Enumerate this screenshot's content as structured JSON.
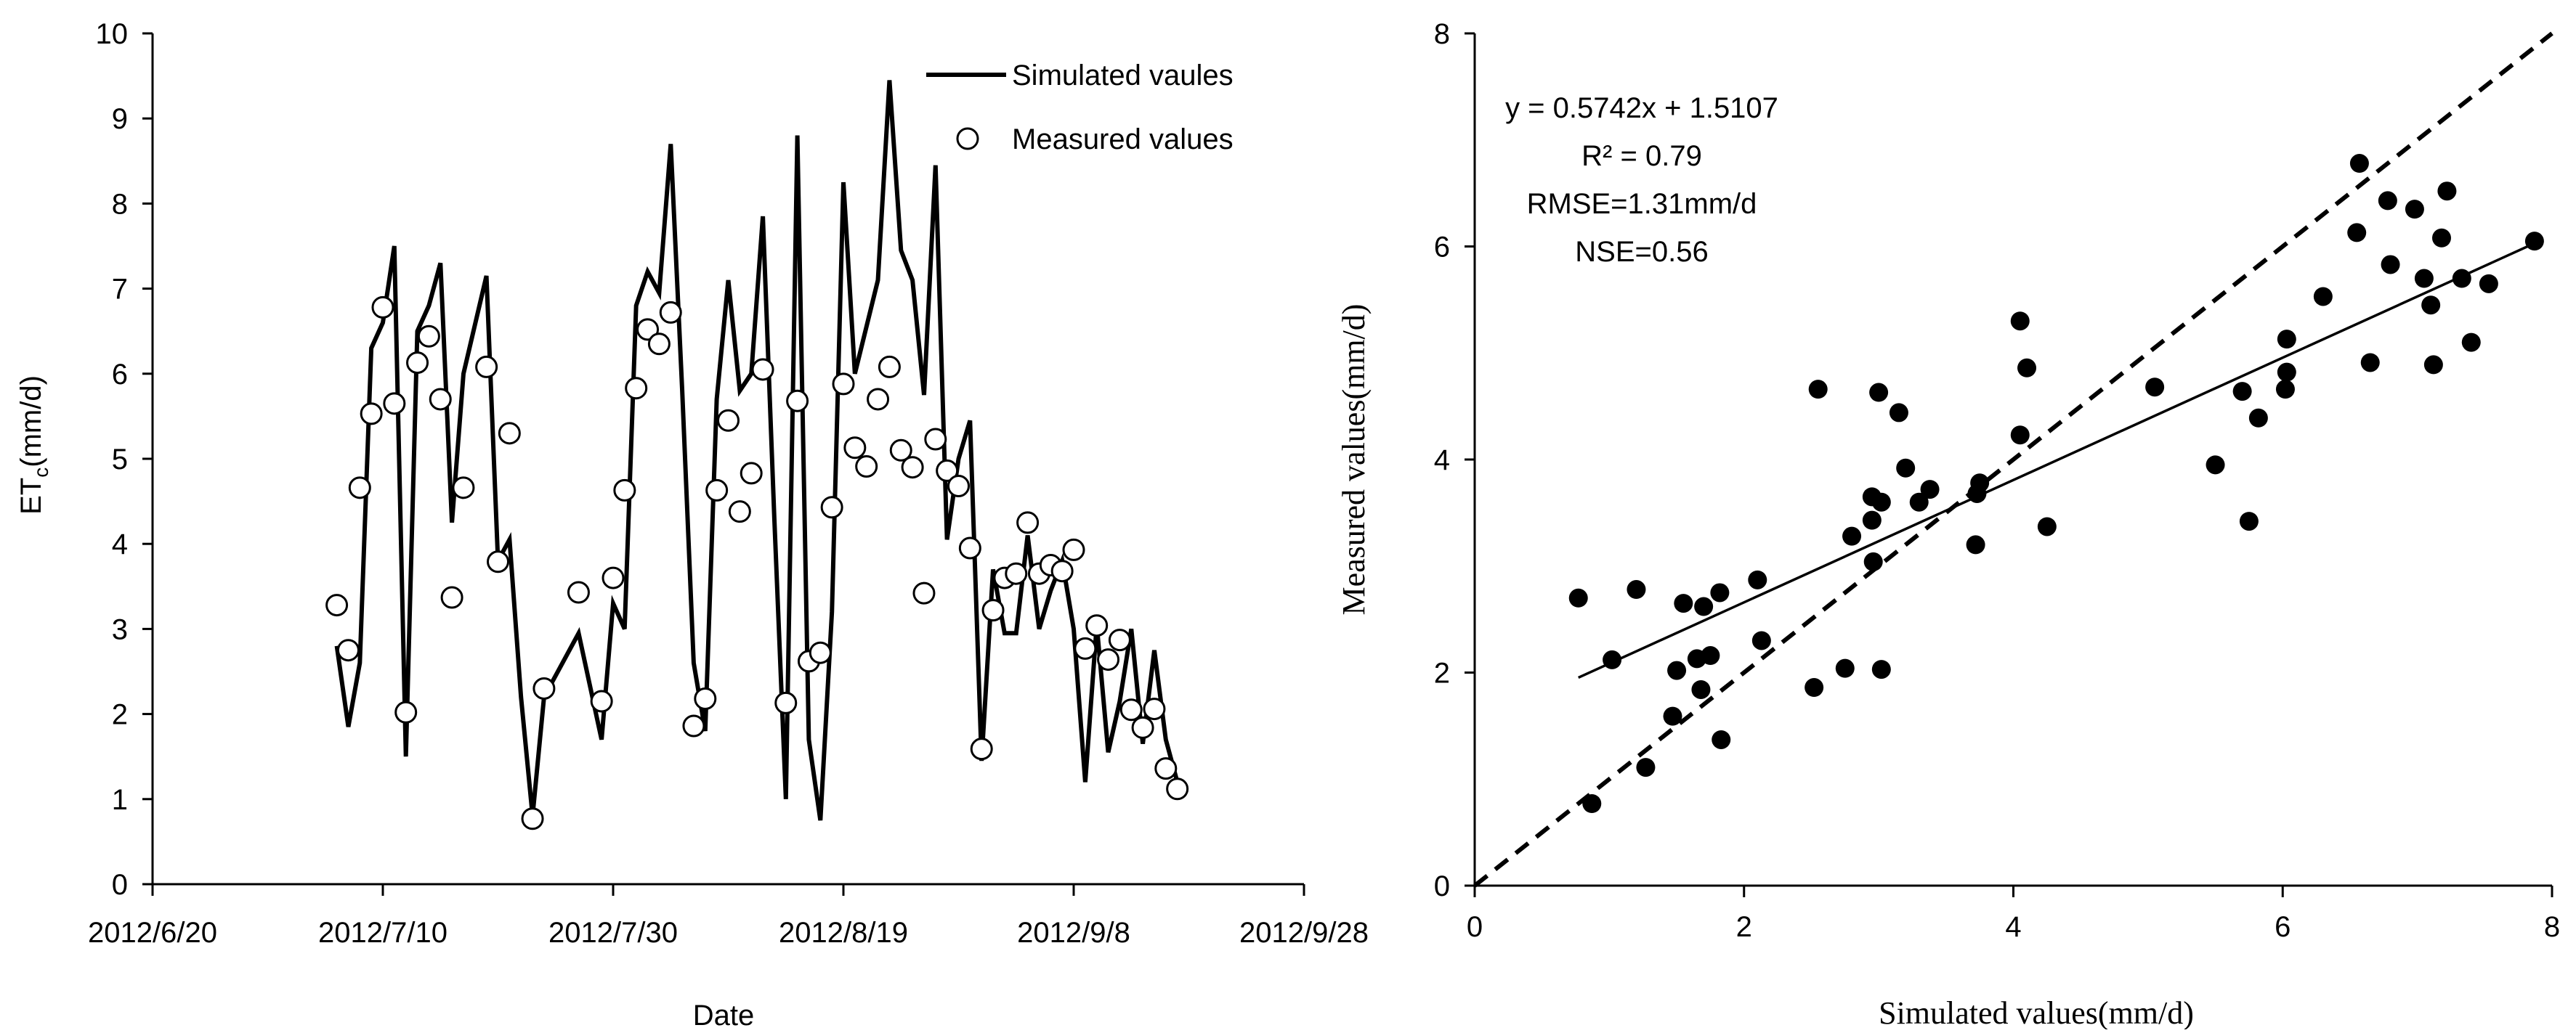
{
  "chart_data": [
    {
      "type": "line",
      "xlabel": "Date",
      "ylabel": "ET",
      "ylabel_sub": "c",
      "ylabel_unit": "(mm/d)",
      "xlim": [
        "2012-06-20",
        "2012-09-28"
      ],
      "x_ticks": [
        "2012/6/20",
        "2012/7/10",
        "2012/7/30",
        "2012/8/19",
        "2012/9/8",
        "2012/9/28"
      ],
      "ylim": [
        0,
        10
      ],
      "y_ticks": [
        0,
        1,
        2,
        3,
        4,
        5,
        6,
        7,
        8,
        9,
        10
      ],
      "grid": false,
      "legend_position": "top-right",
      "legend": {
        "simulated": "Simulated vaules",
        "measured": "Measured values"
      },
      "series": [
        {
          "name": "Simulated vaules",
          "type": "line",
          "color": "#000000",
          "points": [
            [
              "2012-07-06",
              2.8
            ],
            [
              "2012-07-07",
              1.85
            ],
            [
              "2012-07-08",
              2.6
            ],
            [
              "2012-07-09",
              6.3
            ],
            [
              "2012-07-10",
              6.6
            ],
            [
              "2012-07-11",
              7.5
            ],
            [
              "2012-07-12",
              1.5
            ],
            [
              "2012-07-13",
              6.5
            ],
            [
              "2012-07-14",
              6.8
            ],
            [
              "2012-07-15",
              7.3
            ],
            [
              "2012-07-16",
              4.25
            ],
            [
              "2012-07-17",
              6.0
            ],
            [
              "2012-07-19",
              7.15
            ],
            [
              "2012-07-20",
              3.8
            ],
            [
              "2012-07-21",
              4.05
            ],
            [
              "2012-07-22",
              2.2
            ],
            [
              "2012-07-23",
              0.8
            ],
            [
              "2012-07-24",
              2.2
            ],
            [
              "2012-07-27",
              2.95
            ],
            [
              "2012-07-29",
              1.7
            ],
            [
              "2012-07-30",
              3.3
            ],
            [
              "2012-07-31",
              3.0
            ],
            [
              "2012-08-01",
              6.8
            ],
            [
              "2012-08-02",
              7.2
            ],
            [
              "2012-08-03",
              6.95
            ],
            [
              "2012-08-04",
              8.7
            ],
            [
              "2012-08-05",
              5.8
            ],
            [
              "2012-08-06",
              2.6
            ],
            [
              "2012-08-07",
              1.8
            ],
            [
              "2012-08-08",
              5.7
            ],
            [
              "2012-08-09",
              7.1
            ],
            [
              "2012-08-10",
              5.8
            ],
            [
              "2012-08-11",
              6.0
            ],
            [
              "2012-08-12",
              7.85
            ],
            [
              "2012-08-13",
              4.3
            ],
            [
              "2012-08-14",
              1.0
            ],
            [
              "2012-08-15",
              8.8
            ],
            [
              "2012-08-16",
              1.7
            ],
            [
              "2012-08-17",
              0.75
            ],
            [
              "2012-08-18",
              3.2
            ],
            [
              "2012-08-19",
              8.25
            ],
            [
              "2012-08-20",
              6.0
            ],
            [
              "2012-08-22",
              7.1
            ],
            [
              "2012-08-23",
              9.45
            ],
            [
              "2012-08-24",
              7.45
            ],
            [
              "2012-08-25",
              7.1
            ],
            [
              "2012-08-26",
              5.75
            ],
            [
              "2012-08-27",
              8.45
            ],
            [
              "2012-08-28",
              4.05
            ],
            [
              "2012-08-29",
              5.0
            ],
            [
              "2012-08-30",
              5.45
            ],
            [
              "2012-08-31",
              1.45
            ],
            [
              "2012-09-01",
              3.7
            ],
            [
              "2012-09-02",
              2.95
            ],
            [
              "2012-09-03",
              2.95
            ],
            [
              "2012-09-04",
              4.1
            ],
            [
              "2012-09-05",
              3.0
            ],
            [
              "2012-09-06",
              3.45
            ],
            [
              "2012-09-07",
              3.8
            ],
            [
              "2012-09-08",
              3.0
            ],
            [
              "2012-09-09",
              1.2
            ],
            [
              "2012-09-10",
              3.05
            ],
            [
              "2012-09-11",
              1.55
            ],
            [
              "2012-09-12",
              2.15
            ],
            [
              "2012-09-13",
              3.0
            ],
            [
              "2012-09-14",
              1.65
            ],
            [
              "2012-09-15",
              2.75
            ],
            [
              "2012-09-16",
              1.7
            ],
            [
              "2012-09-17",
              1.2
            ]
          ]
        },
        {
          "name": "Measured values",
          "type": "scatter",
          "marker": "open-circle",
          "points": [
            [
              "2012-07-06",
              3.28
            ],
            [
              "2012-07-07",
              2.75
            ],
            [
              "2012-07-08",
              4.66
            ],
            [
              "2012-07-09",
              5.53
            ],
            [
              "2012-07-10",
              6.78
            ],
            [
              "2012-07-11",
              5.65
            ],
            [
              "2012-07-12",
              2.02
            ],
            [
              "2012-07-13",
              6.13
            ],
            [
              "2012-07-14",
              6.44
            ],
            [
              "2012-07-15",
              5.7
            ],
            [
              "2012-07-16",
              3.37
            ],
            [
              "2012-07-17",
              4.66
            ],
            [
              "2012-07-19",
              6.08
            ],
            [
              "2012-07-20",
              3.79
            ],
            [
              "2012-07-21",
              5.3
            ],
            [
              "2012-07-23",
              0.77
            ],
            [
              "2012-07-24",
              2.3
            ],
            [
              "2012-07-27",
              3.43
            ],
            [
              "2012-07-29",
              2.15
            ],
            [
              "2012-07-30",
              3.6
            ],
            [
              "2012-07-31",
              4.63
            ],
            [
              "2012-08-01",
              5.83
            ],
            [
              "2012-08-02",
              6.52
            ],
            [
              "2012-08-03",
              6.35
            ],
            [
              "2012-08-04",
              6.72
            ],
            [
              "2012-08-06",
              1.86
            ],
            [
              "2012-08-07",
              2.18
            ],
            [
              "2012-08-08",
              4.63
            ],
            [
              "2012-08-09",
              5.45
            ],
            [
              "2012-08-10",
              4.38
            ],
            [
              "2012-08-11",
              4.83
            ],
            [
              "2012-08-12",
              6.05
            ],
            [
              "2012-08-14",
              2.13
            ],
            [
              "2012-08-15",
              5.68
            ],
            [
              "2012-08-16",
              2.62
            ],
            [
              "2012-08-17",
              2.72
            ],
            [
              "2012-08-18",
              4.43
            ],
            [
              "2012-08-19",
              5.88
            ],
            [
              "2012-08-20",
              5.13
            ],
            [
              "2012-08-21",
              4.91
            ],
            [
              "2012-08-22",
              5.7
            ],
            [
              "2012-08-23",
              6.08
            ],
            [
              "2012-08-24",
              5.1
            ],
            [
              "2012-08-25",
              4.9
            ],
            [
              "2012-08-26",
              3.42
            ],
            [
              "2012-08-27",
              5.23
            ],
            [
              "2012-08-28",
              4.86
            ],
            [
              "2012-08-29",
              4.68
            ],
            [
              "2012-08-30",
              3.95
            ],
            [
              "2012-08-31",
              1.59
            ],
            [
              "2012-09-01",
              3.22
            ],
            [
              "2012-09-02",
              3.6
            ],
            [
              "2012-09-03",
              3.65
            ],
            [
              "2012-09-04",
              4.25
            ],
            [
              "2012-09-05",
              3.65
            ],
            [
              "2012-09-06",
              3.75
            ],
            [
              "2012-09-07",
              3.68
            ],
            [
              "2012-09-08",
              3.93
            ],
            [
              "2012-09-09",
              2.77
            ],
            [
              "2012-09-10",
              3.04
            ],
            [
              "2012-09-11",
              2.64
            ],
            [
              "2012-09-12",
              2.87
            ],
            [
              "2012-09-13",
              2.05
            ],
            [
              "2012-09-14",
              1.84
            ],
            [
              "2012-09-15",
              2.06
            ],
            [
              "2012-09-16",
              1.36
            ],
            [
              "2012-09-17",
              1.12
            ]
          ]
        }
      ]
    },
    {
      "type": "scatter",
      "xlabel": "Simulated values(mm/d)",
      "ylabel": "Measured values(mm/d)",
      "xlim": [
        0,
        8
      ],
      "ylim": [
        0,
        8
      ],
      "x_ticks": [
        0,
        2,
        4,
        6,
        8
      ],
      "y_ticks": [
        0,
        2,
        4,
        6,
        8
      ],
      "grid": false,
      "annotations": [
        "y = 0.5742x + 1.5107",
        "R² = 0.79",
        "RMSE=1.31mm/d",
        "NSE=0.56"
      ],
      "regression": {
        "slope": 0.5742,
        "intercept": 1.5107,
        "x_range": [
          0.77,
          7.87
        ]
      },
      "reference_line": {
        "slope": 1,
        "intercept": 0,
        "style": "dashed"
      },
      "points": [
        [
          0.77,
          2.7
        ],
        [
          0.87,
          0.77
        ],
        [
          1.02,
          2.12
        ],
        [
          1.2,
          2.78
        ],
        [
          1.27,
          1.11
        ],
        [
          1.47,
          1.59
        ],
        [
          1.5,
          2.02
        ],
        [
          1.55,
          2.65
        ],
        [
          1.65,
          2.13
        ],
        [
          1.68,
          1.84
        ],
        [
          1.7,
          2.62
        ],
        [
          1.75,
          2.16
        ],
        [
          1.82,
          2.75
        ],
        [
          1.83,
          1.37
        ],
        [
          2.1,
          2.87
        ],
        [
          2.13,
          2.3
        ],
        [
          2.52,
          1.86
        ],
        [
          2.55,
          4.66
        ],
        [
          2.75,
          2.04
        ],
        [
          2.8,
          3.28
        ],
        [
          2.95,
          3.43
        ],
        [
          2.96,
          3.04
        ],
        [
          2.95,
          3.65
        ],
        [
          3.0,
          4.63
        ],
        [
          3.02,
          3.6
        ],
        [
          3.02,
          2.03
        ],
        [
          3.15,
          4.44
        ],
        [
          3.2,
          3.92
        ],
        [
          3.3,
          3.6
        ],
        [
          3.38,
          3.72
        ],
        [
          3.72,
          3.2
        ],
        [
          3.73,
          3.68
        ],
        [
          3.75,
          3.78
        ],
        [
          4.05,
          4.23
        ],
        [
          4.05,
          5.3
        ],
        [
          4.1,
          4.86
        ],
        [
          4.25,
          3.37
        ],
        [
          5.05,
          4.68
        ],
        [
          5.5,
          3.95
        ],
        [
          5.7,
          4.64
        ],
        [
          5.75,
          3.42
        ],
        [
          5.82,
          4.39
        ],
        [
          6.02,
          4.66
        ],
        [
          6.03,
          4.82
        ],
        [
          6.03,
          5.13
        ],
        [
          6.3,
          5.53
        ],
        [
          6.55,
          6.13
        ],
        [
          6.57,
          6.78
        ],
        [
          6.65,
          4.91
        ],
        [
          6.78,
          6.43
        ],
        [
          6.8,
          5.83
        ],
        [
          6.98,
          6.35
        ],
        [
          7.05,
          5.7
        ],
        [
          7.1,
          5.45
        ],
        [
          7.12,
          4.89
        ],
        [
          7.18,
          6.08
        ],
        [
          7.22,
          6.52
        ],
        [
          7.33,
          5.7
        ],
        [
          7.4,
          5.1
        ],
        [
          7.53,
          5.65
        ],
        [
          7.87,
          6.05
        ]
      ]
    }
  ]
}
